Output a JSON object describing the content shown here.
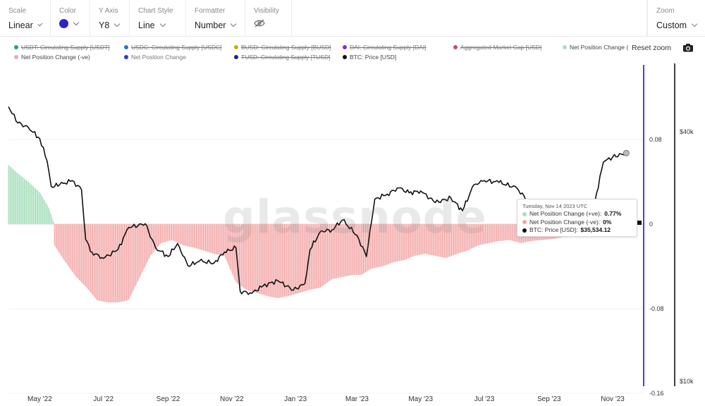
{
  "toolbar": {
    "scale": {
      "label": "Scale",
      "value": "Linear"
    },
    "color": {
      "label": "Color",
      "swatch": "#2b23c4"
    },
    "yaxis": {
      "label": "Y Axis",
      "value": "Y8"
    },
    "chart_style": {
      "label": "Chart Style",
      "value": "Line"
    },
    "formatter": {
      "label": "Formatter",
      "value": "Number"
    },
    "visibility": {
      "label": "Visibility",
      "icon": "eye-slash-icon"
    },
    "zoom": {
      "label": "Zoom",
      "value": "Custom"
    }
  },
  "legend": [
    {
      "label": "USDT: Circulating Supply [USDT]",
      "color": "#26a17b",
      "off": true
    },
    {
      "label": "USDC: Circulating Supply [USDC]",
      "color": "#2775ca",
      "off": true
    },
    {
      "label": "BUSD: Circulating Supply [BUSD]",
      "color": "#b8b800",
      "off": true
    },
    {
      "label": "DAI: Circulating Supply [DAI]",
      "color": "#8a2be2",
      "off": true
    },
    {
      "label": "Aggregated Market Cap [USD]",
      "color": "#c0506a",
      "off": true
    },
    {
      "label": "Net Position Change (",
      "color": "#a8e0c0",
      "off": false
    },
    {
      "label": "Net Position Change (-ve)",
      "color": "#f4a6a6",
      "off": false
    },
    {
      "label": "Net Position Change",
      "color": "#3a34c8",
      "off": true
    },
    {
      "label": "TUSD: Circulating Supply [TUSD]",
      "color": "#1a2a6c",
      "off": true
    },
    {
      "label": "BTC: Price [USD]",
      "color": "#111111",
      "off": false
    }
  ],
  "controls": {
    "reset_zoom": "Reset zoom",
    "camera_icon": "camera-icon"
  },
  "watermark": "glassnode",
  "tooltip": {
    "date": "Tuesday, Nov 14 2023 UTC",
    "rows": [
      {
        "label": "Net Position Change (+ve): ",
        "value": "0.77%",
        "color": "#a8e0c0"
      },
      {
        "label": "Net Position Change (-ve): ",
        "value": "0%",
        "color": "#f4a6a6"
      },
      {
        "label": "BTC: Price [USD]: ",
        "value": "$35,534.12",
        "color": "#111111"
      }
    ]
  },
  "chart_data": {
    "type": "area",
    "x_ticks": [
      "May '22",
      "Jul '22",
      "Sep '22",
      "Nov '22",
      "Jan '23",
      "Mar '23",
      "May '23",
      "Jul '23",
      "Sep '23",
      "Nov '23"
    ],
    "x_range": [
      "2022-04-01",
      "2023-11-30"
    ],
    "y_left": {
      "ticks": [
        0.08,
        0,
        -0.08,
        -0.16
      ],
      "tick_labels": [
        "0.08",
        "0",
        "-0.08",
        "-0.16"
      ],
      "range": [
        -0.16,
        0.15
      ]
    },
    "y_right": {
      "tick_labels": [
        "$40k",
        "$10k"
      ],
      "scale": "log",
      "range": [
        10000,
        60000
      ]
    },
    "series": [
      {
        "name": "Net Position Change (+ve)",
        "axis": "left",
        "color": "#a8e0c0",
        "x": [
          "2022-04-01",
          "2022-04-10",
          "2022-04-20",
          "2022-05-01",
          "2022-05-10",
          "2022-05-15"
        ],
        "y": [
          0.056,
          0.048,
          0.04,
          0.03,
          0.015,
          0.0
        ]
      },
      {
        "name": "Net Position Change (-ve)",
        "axis": "left",
        "color": "#f4a6a6",
        "x": [
          "2022-05-15",
          "2022-05-25",
          "2022-06-05",
          "2022-06-15",
          "2022-06-25",
          "2022-07-05",
          "2022-07-15",
          "2022-07-25",
          "2022-08-05",
          "2022-08-15",
          "2022-08-25",
          "2022-09-05",
          "2022-09-15",
          "2022-09-25",
          "2022-10-05",
          "2022-10-15",
          "2022-10-25",
          "2022-11-05",
          "2022-11-15",
          "2022-11-25",
          "2022-12-05",
          "2022-12-15",
          "2022-12-25",
          "2023-01-05",
          "2023-01-15",
          "2023-01-25",
          "2023-02-05",
          "2023-02-15",
          "2023-02-25",
          "2023-03-05",
          "2023-03-15",
          "2023-03-25",
          "2023-04-05",
          "2023-04-15",
          "2023-04-25",
          "2023-05-05",
          "2023-05-15",
          "2023-05-25",
          "2023-06-05",
          "2023-06-15",
          "2023-06-25",
          "2023-07-05",
          "2023-07-15",
          "2023-07-25",
          "2023-08-05",
          "2023-08-15",
          "2023-08-25",
          "2023-09-05",
          "2023-09-15",
          "2023-09-25",
          "2023-10-05",
          "2023-10-15",
          "2023-10-25",
          "2023-11-05"
        ],
        "y": [
          -0.02,
          -0.035,
          -0.05,
          -0.06,
          -0.072,
          -0.074,
          -0.074,
          -0.072,
          -0.05,
          -0.03,
          -0.018,
          -0.015,
          -0.02,
          -0.022,
          -0.025,
          -0.028,
          -0.03,
          -0.055,
          -0.062,
          -0.065,
          -0.068,
          -0.07,
          -0.068,
          -0.065,
          -0.062,
          -0.06,
          -0.052,
          -0.05,
          -0.048,
          -0.048,
          -0.042,
          -0.04,
          -0.036,
          -0.034,
          -0.03,
          -0.028,
          -0.03,
          -0.032,
          -0.028,
          -0.025,
          -0.02,
          -0.018,
          -0.016,
          -0.015,
          -0.018,
          -0.016,
          -0.015,
          -0.014,
          -0.012,
          -0.01,
          -0.008,
          -0.006,
          -0.004,
          0.0
        ]
      },
      {
        "name": "BTC: Price [USD]",
        "axis": "right",
        "color": "#111111",
        "x": [
          "2022-04-01",
          "2022-04-10",
          "2022-04-20",
          "2022-05-01",
          "2022-05-08",
          "2022-05-12",
          "2022-05-20",
          "2022-06-01",
          "2022-06-10",
          "2022-06-14",
          "2022-06-20",
          "2022-07-01",
          "2022-07-15",
          "2022-07-25",
          "2022-08-10",
          "2022-08-20",
          "2022-09-01",
          "2022-09-10",
          "2022-09-20",
          "2022-10-01",
          "2022-10-15",
          "2022-10-25",
          "2022-11-05",
          "2022-11-09",
          "2022-11-20",
          "2022-12-01",
          "2022-12-15",
          "2022-12-30",
          "2023-01-10",
          "2023-01-15",
          "2023-01-25",
          "2023-02-05",
          "2023-02-15",
          "2023-03-01",
          "2023-03-10",
          "2023-03-18",
          "2023-03-30",
          "2023-04-10",
          "2023-04-20",
          "2023-05-01",
          "2023-05-15",
          "2023-05-30",
          "2023-06-10",
          "2023-06-21",
          "2023-07-01",
          "2023-07-15",
          "2023-08-01",
          "2023-08-17",
          "2023-09-01",
          "2023-09-15",
          "2023-10-01",
          "2023-10-15",
          "2023-10-23",
          "2023-11-01",
          "2023-11-14"
        ],
        "y": [
          46000,
          42000,
          41000,
          38500,
          34000,
          29500,
          29800,
          30500,
          29000,
          22000,
          20500,
          19800,
          20800,
          23500,
          24000,
          21000,
          20000,
          21500,
          19000,
          19500,
          19300,
          20500,
          21000,
          16500,
          16300,
          17000,
          17500,
          16600,
          17200,
          20800,
          23000,
          23200,
          24500,
          22500,
          20000,
          27500,
          28300,
          29300,
          28500,
          28800,
          27000,
          27700,
          25800,
          29800,
          30500,
          30200,
          29300,
          26200,
          25900,
          26500,
          27000,
          27200,
          33800,
          34800,
          35534.12
        ]
      }
    ],
    "annotations": [
      "glassnode"
    ]
  }
}
